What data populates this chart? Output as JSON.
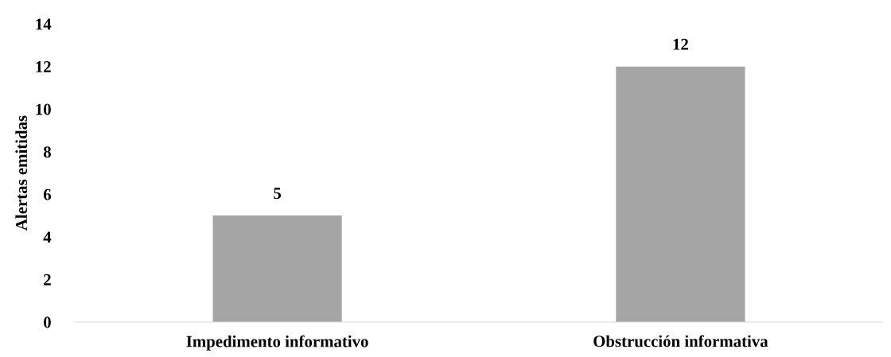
{
  "chart_data": {
    "type": "bar",
    "ylabel": "Alertas emitidas",
    "categories": [
      "Impedimento informativo",
      "Obstrucción informativa"
    ],
    "values": [
      5,
      12
    ],
    "color": "#a5a5a5",
    "ylim": [
      0,
      14
    ],
    "yticks": [
      0,
      2,
      4,
      6,
      8,
      10,
      12,
      14
    ],
    "grid": false,
    "data_labels": true
  }
}
